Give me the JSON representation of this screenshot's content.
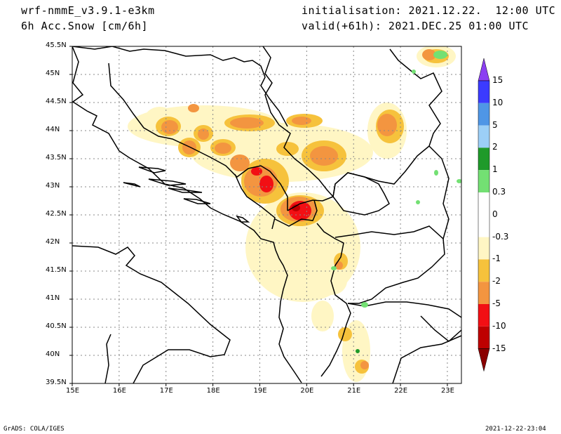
{
  "header": {
    "model": "wrf-nmmE_v3.9.1-e3km",
    "variable": "6h Acc.Snow [cm/6h]",
    "init": "initialisation: 2021.12.22.  12:00 UTC",
    "valid": "valid(+61h): 2021.DEC.25 01:00 UTC"
  },
  "axes": {
    "lon_labels": [
      "15E",
      "16E",
      "17E",
      "18E",
      "19E",
      "20E",
      "21E",
      "22E",
      "23E"
    ],
    "lat_labels": [
      "45.5N",
      "45N",
      "44.5N",
      "44N",
      "43.5N",
      "43N",
      "42.5N",
      "42N",
      "41.5N",
      "41N",
      "40.5N",
      "40N",
      "39.5N"
    ],
    "lon_range": [
      15,
      23.3
    ],
    "lat_range": [
      39.5,
      45.5
    ],
    "grid": true
  },
  "colorbar": {
    "labels": [
      "15",
      "10",
      "5",
      "2",
      "1",
      "0.3",
      "0",
      "-0.3",
      "-1",
      "-2",
      "-5",
      "-10",
      "-15"
    ],
    "colors": [
      "#3b3bff",
      "#4f96e6",
      "#9ccff7",
      "#1f9a2a",
      "#73e073",
      "#ffffff",
      "#ffffff",
      "#fff6c4",
      "#f6c23c",
      "#f39540",
      "#f20f14",
      "#be0000"
    ],
    "top_arrow_color": "#8b3ff2",
    "bottom_arrow_color": "#8a0000"
  },
  "footer": {
    "left": "GrADS: COLA/IGES",
    "right": "2021-12-22-23:04"
  },
  "palette": {
    "light": "#fff6c4",
    "yellow": "#f6c23c",
    "orange": "#f39540",
    "red": "#f20f14",
    "darkred": "#be0000",
    "green": "#73e073",
    "darkgreen": "#1f9a2a"
  }
}
